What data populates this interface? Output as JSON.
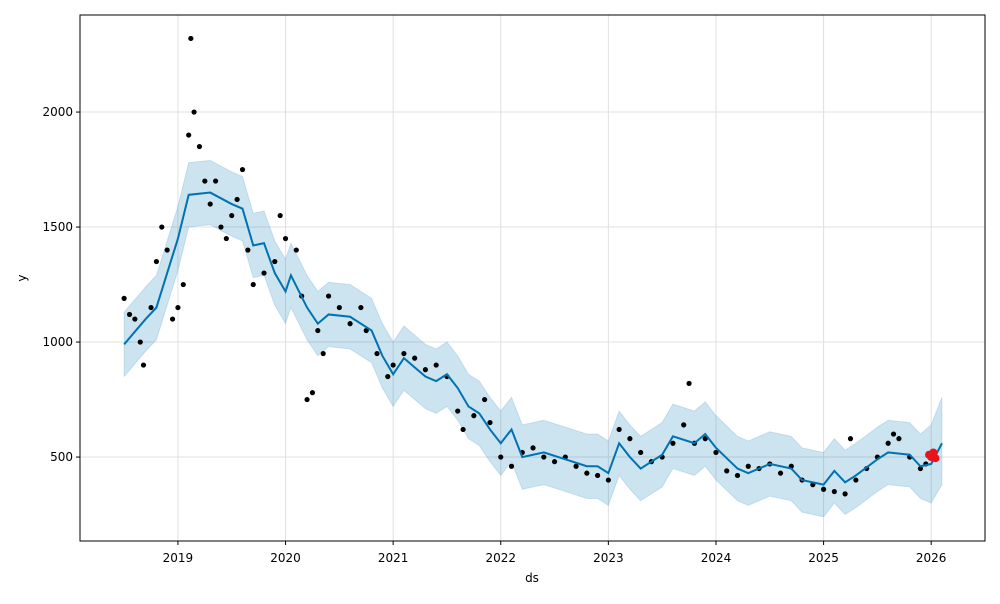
{
  "chart_data": {
    "type": "forecast",
    "x_label": "ds",
    "y_label": "y",
    "xlim": [
      2018.09,
      2026.5
    ],
    "xticks": [
      2019,
      2020,
      2021,
      2022,
      2023,
      2024,
      2025,
      2026
    ],
    "ylim": [
      135,
      2422
    ],
    "yticks": [
      500,
      1000,
      1500,
      2000
    ],
    "grid": true,
    "observed": {
      "color": "#000000",
      "x": [
        2018.5,
        2018.55,
        2018.6,
        2018.65,
        2018.68,
        2018.75,
        2018.8,
        2018.85,
        2018.9,
        2018.95,
        2019.0,
        2019.05,
        2019.1,
        2019.12,
        2019.15,
        2019.2,
        2019.25,
        2019.3,
        2019.35,
        2019.4,
        2019.45,
        2019.5,
        2019.55,
        2019.6,
        2019.65,
        2019.7,
        2019.8,
        2019.9,
        2019.95,
        2020.0,
        2020.1,
        2020.15,
        2020.2,
        2020.25,
        2020.3,
        2020.35,
        2020.4,
        2020.5,
        2020.6,
        2020.7,
        2020.75,
        2020.85,
        2020.95,
        2021.0,
        2021.1,
        2021.2,
        2021.3,
        2021.4,
        2021.5,
        2021.6,
        2021.65,
        2021.75,
        2021.85,
        2021.9,
        2022.0,
        2022.1,
        2022.2,
        2022.3,
        2022.4,
        2022.5,
        2022.6,
        2022.7,
        2022.8,
        2022.9,
        2023.0,
        2023.1,
        2023.2,
        2023.3,
        2023.4,
        2023.5,
        2023.6,
        2023.7,
        2023.75,
        2023.8,
        2023.9,
        2024.0,
        2024.1,
        2024.2,
        2024.3,
        2024.4,
        2024.5,
        2024.6,
        2024.7,
        2024.8,
        2024.9,
        2025.0,
        2025.1,
        2025.2,
        2025.25,
        2025.3,
        2025.4,
        2025.5,
        2025.6,
        2025.65,
        2025.7,
        2025.8,
        2025.9,
        2025.95
      ],
      "values": [
        1190,
        1120,
        1100,
        1000,
        900,
        1150,
        1350,
        1500,
        1400,
        1100,
        1150,
        1250,
        1900,
        2320,
        2000,
        1850,
        1700,
        1600,
        1700,
        1500,
        1450,
        1550,
        1620,
        1750,
        1400,
        1250,
        1300,
        1350,
        1550,
        1450,
        1400,
        1200,
        750,
        780,
        1050,
        950,
        1200,
        1150,
        1080,
        1150,
        1050,
        950,
        850,
        900,
        950,
        930,
        880,
        900,
        850,
        700,
        620,
        680,
        750,
        650,
        500,
        460,
        520,
        540,
        500,
        480,
        500,
        460,
        430,
        420,
        400,
        620,
        580,
        520,
        480,
        500,
        560,
        640,
        820,
        560,
        580,
        520,
        440,
        420,
        460,
        450,
        470,
        430,
        460,
        400,
        380,
        360,
        350,
        340,
        580,
        400,
        450,
        500,
        560,
        600,
        580,
        500,
        450,
        470
      ]
    },
    "recent": {
      "color": "#e8141c",
      "x": [
        2025.98,
        2026.0,
        2026.02,
        2026.04
      ],
      "values": [
        510,
        500,
        520,
        495
      ]
    },
    "forecast": {
      "color": "#0072b2",
      "band_color": "#0072b2",
      "x": [
        2018.5,
        2018.7,
        2018.8,
        2019.0,
        2019.1,
        2019.3,
        2019.5,
        2019.6,
        2019.7,
        2019.8,
        2019.9,
        2020.0,
        2020.05,
        2020.2,
        2020.3,
        2020.4,
        2020.6,
        2020.8,
        2020.9,
        2021.0,
        2021.1,
        2021.2,
        2021.3,
        2021.4,
        2021.5,
        2021.6,
        2021.7,
        2021.8,
        2021.9,
        2022.0,
        2022.1,
        2022.2,
        2022.4,
        2022.6,
        2022.8,
        2022.9,
        2023.0,
        2023.1,
        2023.2,
        2023.3,
        2023.5,
        2023.6,
        2023.8,
        2023.9,
        2024.0,
        2024.2,
        2024.3,
        2024.5,
        2024.7,
        2024.8,
        2025.0,
        2025.1,
        2025.2,
        2025.3,
        2025.5,
        2025.6,
        2025.8,
        2025.9,
        2026.0,
        2026.1
      ],
      "values": [
        990,
        1100,
        1150,
        1450,
        1640,
        1650,
        1600,
        1580,
        1420,
        1430,
        1300,
        1220,
        1290,
        1150,
        1080,
        1120,
        1110,
        1050,
        940,
        860,
        930,
        890,
        850,
        830,
        860,
        800,
        720,
        690,
        620,
        560,
        620,
        500,
        520,
        490,
        460,
        460,
        430,
        560,
        500,
        450,
        510,
        590,
        560,
        600,
        540,
        450,
        430,
        470,
        450,
        400,
        380,
        440,
        390,
        420,
        490,
        520,
        510,
        460,
        470,
        560
      ],
      "lower": [
        850,
        960,
        1010,
        1310,
        1500,
        1510,
        1460,
        1440,
        1280,
        1290,
        1160,
        1080,
        1150,
        1010,
        940,
        980,
        970,
        910,
        800,
        720,
        790,
        750,
        710,
        690,
        720,
        660,
        580,
        550,
        480,
        420,
        480,
        360,
        380,
        350,
        320,
        320,
        290,
        420,
        360,
        310,
        370,
        450,
        420,
        460,
        400,
        310,
        290,
        330,
        310,
        260,
        240,
        300,
        250,
        280,
        350,
        380,
        370,
        320,
        300,
        380
      ],
      "upper": [
        1130,
        1240,
        1290,
        1590,
        1780,
        1790,
        1740,
        1720,
        1560,
        1570,
        1440,
        1360,
        1430,
        1290,
        1220,
        1260,
        1250,
        1190,
        1080,
        1000,
        1070,
        1030,
        990,
        970,
        1000,
        940,
        860,
        830,
        760,
        700,
        760,
        640,
        660,
        630,
        600,
        600,
        570,
        700,
        640,
        590,
        650,
        730,
        700,
        740,
        680,
        590,
        570,
        610,
        590,
        540,
        520,
        580,
        530,
        560,
        630,
        660,
        650,
        600,
        640,
        760
      ]
    }
  }
}
